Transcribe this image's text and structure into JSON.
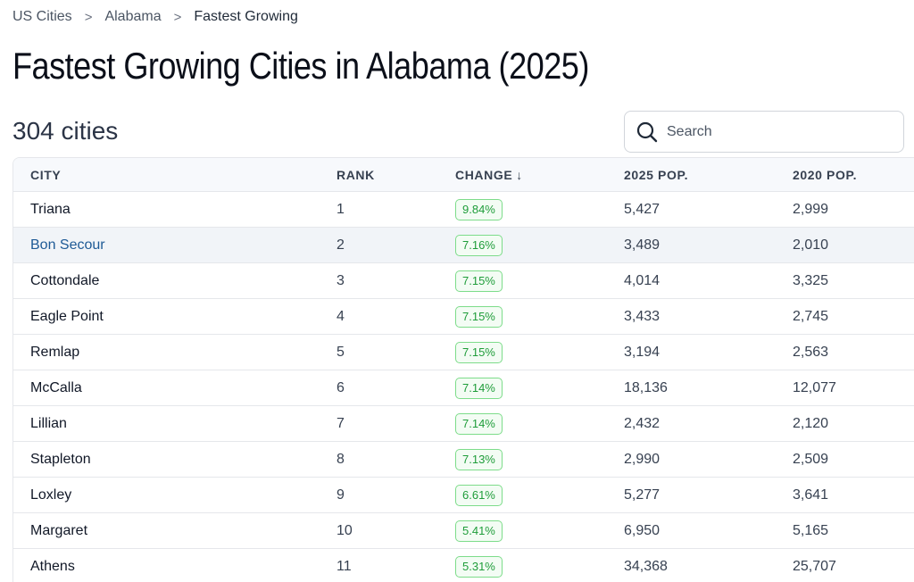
{
  "breadcrumb": {
    "items": [
      "US Cities",
      "Alabama",
      "Fastest Growing"
    ],
    "separator": ">"
  },
  "title": "Fastest Growing Cities in Alabama (2025)",
  "count_label": "304 cities",
  "search": {
    "placeholder": "Search",
    "value": ""
  },
  "table": {
    "headers": {
      "city": "CITY",
      "rank": "RANK",
      "change": "CHANGE",
      "change_sort_icon": "↓",
      "pop_2025": "2025 POP.",
      "pop_2020": "2020 POP."
    },
    "rows": [
      {
        "city": "Triana",
        "rank": "1",
        "change": "9.84%",
        "pop_2025": "5,427",
        "pop_2020": "2,999"
      },
      {
        "city": "Bon Secour",
        "rank": "2",
        "change": "7.16%",
        "pop_2025": "3,489",
        "pop_2020": "2,010"
      },
      {
        "city": "Cottondale",
        "rank": "3",
        "change": "7.15%",
        "pop_2025": "4,014",
        "pop_2020": "3,325"
      },
      {
        "city": "Eagle Point",
        "rank": "4",
        "change": "7.15%",
        "pop_2025": "3,433",
        "pop_2020": "2,745"
      },
      {
        "city": "Remlap",
        "rank": "5",
        "change": "7.15%",
        "pop_2025": "3,194",
        "pop_2020": "2,563"
      },
      {
        "city": "McCalla",
        "rank": "6",
        "change": "7.14%",
        "pop_2025": "18,136",
        "pop_2020": "12,077"
      },
      {
        "city": "Lillian",
        "rank": "7",
        "change": "7.14%",
        "pop_2025": "2,432",
        "pop_2020": "2,120"
      },
      {
        "city": "Stapleton",
        "rank": "8",
        "change": "7.13%",
        "pop_2025": "2,990",
        "pop_2020": "2,509"
      },
      {
        "city": "Loxley",
        "rank": "9",
        "change": "6.61%",
        "pop_2025": "5,277",
        "pop_2020": "3,641"
      },
      {
        "city": "Margaret",
        "rank": "10",
        "change": "5.41%",
        "pop_2025": "6,950",
        "pop_2020": "5,165"
      },
      {
        "city": "Athens",
        "rank": "11",
        "change": "5.31%",
        "pop_2025": "34,368",
        "pop_2020": "25,707"
      }
    ]
  },
  "colors": {
    "link": "#1e5a96",
    "badge_green": "#1f9d3a",
    "badge_border": "#7ddc8a",
    "hover_row": "#f1f4f8"
  },
  "icons": {
    "search": "search-icon",
    "sort": "arrow-down-icon"
  }
}
